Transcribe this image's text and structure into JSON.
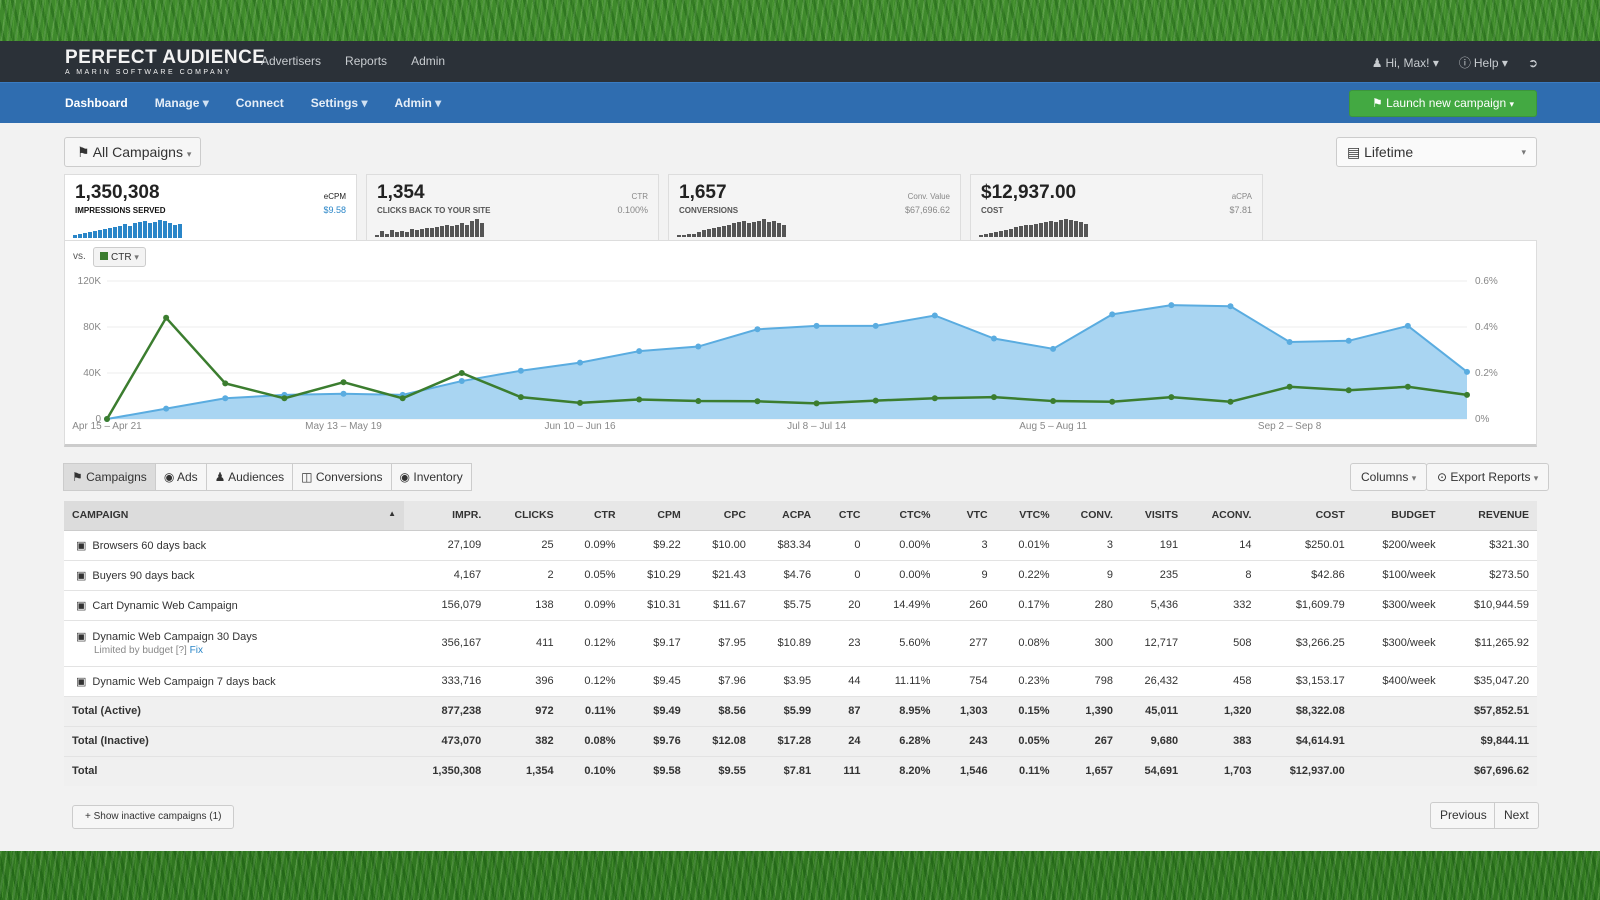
{
  "brand": {
    "name": "PERFECT AUDIENCE",
    "tagline": "A MARIN SOFTWARE COMPANY"
  },
  "topnav": [
    "Advertisers",
    "Reports",
    "Admin"
  ],
  "topright": {
    "user": "Hi, Max!",
    "help": "Help"
  },
  "subnav": {
    "items": [
      "Dashboard",
      "Manage",
      "Connect",
      "Settings",
      "Admin"
    ],
    "launch": "Launch new campaign"
  },
  "filters": {
    "campaigns": "All Campaigns",
    "range": "Lifetime"
  },
  "stats": [
    {
      "value": "1,350,308",
      "label": "IMPRESSIONS SERVED",
      "side_label": "eCPM",
      "side_value": "$9.58",
      "spark": [
        3,
        4,
        5,
        6,
        7,
        8,
        9,
        10,
        11,
        12,
        14,
        12,
        15,
        16,
        17,
        15,
        16,
        18,
        17,
        15,
        13,
        14
      ]
    },
    {
      "value": "1,354",
      "label": "CLICKS BACK TO YOUR SITE",
      "side_label": "CTR",
      "side_value": "0.100%",
      "spark": [
        2,
        5,
        3,
        6,
        4,
        5,
        4,
        7,
        6,
        7,
        8,
        8,
        9,
        10,
        11,
        10,
        11,
        12,
        11,
        14,
        16,
        12
      ]
    },
    {
      "value": "1,657",
      "label": "CONVERSIONS",
      "side_label": "Conv. Value",
      "side_value": "$67,696.62",
      "spark": [
        2,
        2,
        3,
        3,
        4,
        6,
        7,
        8,
        9,
        10,
        11,
        12,
        13,
        14,
        12,
        13,
        14,
        16,
        13,
        14,
        12,
        11
      ]
    },
    {
      "value": "$12,937.00",
      "label": "COST",
      "side_label": "aCPA",
      "side_value": "$7.81",
      "spark": [
        2,
        3,
        4,
        5,
        6,
        7,
        8,
        9,
        10,
        11,
        11,
        12,
        13,
        14,
        15,
        14,
        16,
        17,
        16,
        15,
        14,
        12
      ]
    }
  ],
  "chart_data": {
    "type": "line",
    "vs_label": "vs.",
    "compare_metric": "CTR",
    "x_ticks": [
      "Apr 15 – Apr 21",
      "May 13 – May 19",
      "Jun 10 – Jun 16",
      "Jul 8 – Jul 14",
      "Aug 5 – Aug 11",
      "Sep 2 – Sep 8"
    ],
    "y_left_ticks": [
      "120K",
      "80K",
      "40K",
      "0"
    ],
    "y_right_ticks": [
      "0.6%",
      "0.4%",
      "0.2%",
      "0%"
    ],
    "y_left_lim": [
      0,
      120000
    ],
    "y_right_lim": [
      0,
      0.6
    ],
    "series": [
      {
        "color": "#5aace0",
        "fill": "#a9d5f2",
        "axis": "left",
        "values": [
          0,
          9000,
          18000,
          21000,
          22000,
          21000,
          33000,
          42000,
          49000,
          59000,
          63000,
          78000,
          81000,
          81000,
          90000,
          70000,
          61000,
          91000,
          99000,
          98000,
          67000,
          68000,
          81000,
          41000
        ]
      },
      {
        "color": "#3b7d2f",
        "axis": "right",
        "values": [
          0,
          0.44,
          0.155,
          0.09,
          0.16,
          0.09,
          0.2,
          0.095,
          0.07,
          0.085,
          0.078,
          0.077,
          0.068,
          0.08,
          0.09,
          0.095,
          0.078,
          0.075,
          0.095,
          0.075,
          0.14,
          0.125,
          0.14,
          0.105
        ]
      }
    ]
  },
  "tabs": [
    "Campaigns",
    "Ads",
    "Audiences",
    "Conversions",
    "Inventory"
  ],
  "table_tools": {
    "columns": "Columns",
    "export": "Export Reports"
  },
  "table": {
    "headers": [
      "CAMPAIGN",
      "IMPR.",
      "CLICKS",
      "CTR",
      "CPM",
      "CPC",
      "ACPA",
      "CTC",
      "CTC%",
      "VTC",
      "VTC%",
      "CONV.",
      "VISITS",
      "ACONV.",
      "COST",
      "BUDGET",
      "REVENUE"
    ],
    "rows": [
      [
        "Browsers 60 days back",
        "27,109",
        "25",
        "0.09%",
        "$9.22",
        "$10.00",
        "$83.34",
        "0",
        "0.00%",
        "3",
        "0.01%",
        "3",
        "191",
        "14",
        "$250.01",
        "$200/week",
        "$321.30"
      ],
      [
        "Buyers 90 days back",
        "4,167",
        "2",
        "0.05%",
        "$10.29",
        "$21.43",
        "$4.76",
        "0",
        "0.00%",
        "9",
        "0.22%",
        "9",
        "235",
        "8",
        "$42.86",
        "$100/week",
        "$273.50"
      ],
      [
        "Cart Dynamic Web Campaign",
        "156,079",
        "138",
        "0.09%",
        "$10.31",
        "$11.67",
        "$5.75",
        "20",
        "14.49%",
        "260",
        "0.17%",
        "280",
        "5,436",
        "332",
        "$1,609.79",
        "$300/week",
        "$10,944.59"
      ],
      [
        "Dynamic Web Campaign 30 Days",
        "356,167",
        "411",
        "0.12%",
        "$9.17",
        "$7.95",
        "$10.89",
        "23",
        "5.60%",
        "277",
        "0.08%",
        "300",
        "12,717",
        "508",
        "$3,266.25",
        "$300/week",
        "$11,265.92"
      ],
      [
        "Dynamic Web Campaign 7 days back",
        "333,716",
        "396",
        "0.12%",
        "$9.45",
        "$7.96",
        "$3.95",
        "44",
        "11.11%",
        "754",
        "0.23%",
        "798",
        "26,432",
        "458",
        "$3,153.17",
        "$400/week",
        "$35,047.20"
      ]
    ],
    "limited_note": "Limited by budget [?]",
    "limited_fix": "Fix",
    "totals": [
      [
        "Total (Active)",
        "877,238",
        "972",
        "0.11%",
        "$9.49",
        "$8.56",
        "$5.99",
        "87",
        "8.95%",
        "1,303",
        "0.15%",
        "1,390",
        "45,011",
        "1,320",
        "$8,322.08",
        "",
        "$57,852.51"
      ],
      [
        "Total (Inactive)",
        "473,070",
        "382",
        "0.08%",
        "$9.76",
        "$12.08",
        "$17.28",
        "24",
        "6.28%",
        "243",
        "0.05%",
        "267",
        "9,680",
        "383",
        "$4,614.91",
        "",
        "$9,844.11"
      ],
      [
        "Total",
        "1,350,308",
        "1,354",
        "0.10%",
        "$9.58",
        "$9.55",
        "$7.81",
        "111",
        "8.20%",
        "1,546",
        "0.11%",
        "1,657",
        "54,691",
        "1,703",
        "$12,937.00",
        "",
        "$67,696.62"
      ]
    ]
  },
  "footer": {
    "show_inactive": "+ Show inactive campaigns (1)",
    "previous": "Previous",
    "next": "Next"
  }
}
